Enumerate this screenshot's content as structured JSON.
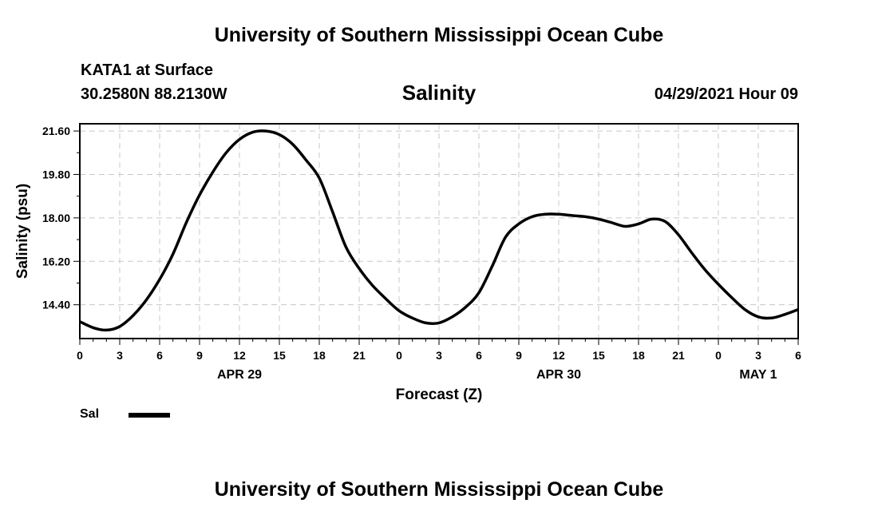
{
  "header": {
    "title": "University of Southern Mississippi Ocean Cube",
    "station": "KATA1 at Surface",
    "coordinates": "30.2580N  88.2130W",
    "parameter": "Salinity",
    "run_time": "04/29/2021 Hour 09"
  },
  "footer": {
    "title": "University of Southern Mississippi Ocean Cube"
  },
  "legend": {
    "label": "Sal",
    "color": "#000000"
  },
  "chart_data": {
    "type": "line",
    "title": "Salinity",
    "xlabel": "Forecast (Z)",
    "ylabel": "Salinity (psu)",
    "xlim": [
      0,
      54
    ],
    "ylim": [
      13.0,
      21.9
    ],
    "x_ticks": [
      0,
      3,
      6,
      9,
      12,
      15,
      18,
      21,
      24,
      27,
      30,
      33,
      36,
      39,
      42,
      45,
      48,
      51,
      54
    ],
    "x_tick_labels": [
      "0",
      "3",
      "6",
      "9",
      "12",
      "15",
      "18",
      "21",
      "0",
      "3",
      "6",
      "9",
      "12",
      "15",
      "18",
      "21",
      "0",
      "3",
      "6"
    ],
    "date_labels": [
      {
        "x": 12,
        "label": "APR 29"
      },
      {
        "x": 36,
        "label": "APR 30"
      },
      {
        "x": 51,
        "label": "MAY 1"
      }
    ],
    "y_ticks": [
      14.4,
      16.2,
      18.0,
      19.8,
      21.6
    ],
    "y_tick_labels": [
      "14.40",
      "16.20",
      "18.00",
      "19.80",
      "21.60"
    ],
    "grid": true,
    "series": [
      {
        "name": "Sal",
        "x": [
          0,
          1,
          2,
          3,
          4,
          5,
          6,
          7,
          8,
          9,
          10,
          11,
          12,
          13,
          14,
          15,
          16,
          17,
          18,
          19,
          20,
          21,
          22,
          23,
          24,
          25,
          26,
          27,
          28,
          29,
          30,
          31,
          32,
          33,
          34,
          35,
          36,
          37,
          38,
          39,
          40,
          41,
          42,
          43,
          44,
          45,
          46,
          47,
          48,
          49,
          50,
          51,
          52,
          53,
          54
        ],
        "values": [
          13.7,
          13.45,
          13.35,
          13.5,
          13.95,
          14.6,
          15.45,
          16.5,
          17.8,
          18.95,
          19.9,
          20.7,
          21.25,
          21.55,
          21.6,
          21.45,
          21.05,
          20.4,
          19.65,
          18.25,
          16.8,
          15.9,
          15.2,
          14.65,
          14.15,
          13.85,
          13.65,
          13.65,
          13.9,
          14.3,
          14.9,
          16.0,
          17.2,
          17.75,
          18.05,
          18.15,
          18.15,
          18.1,
          18.05,
          17.95,
          17.8,
          17.65,
          17.75,
          17.95,
          17.85,
          17.3,
          16.55,
          15.85,
          15.25,
          14.7,
          14.2,
          13.9,
          13.85,
          14.0,
          14.2
        ]
      }
    ]
  }
}
